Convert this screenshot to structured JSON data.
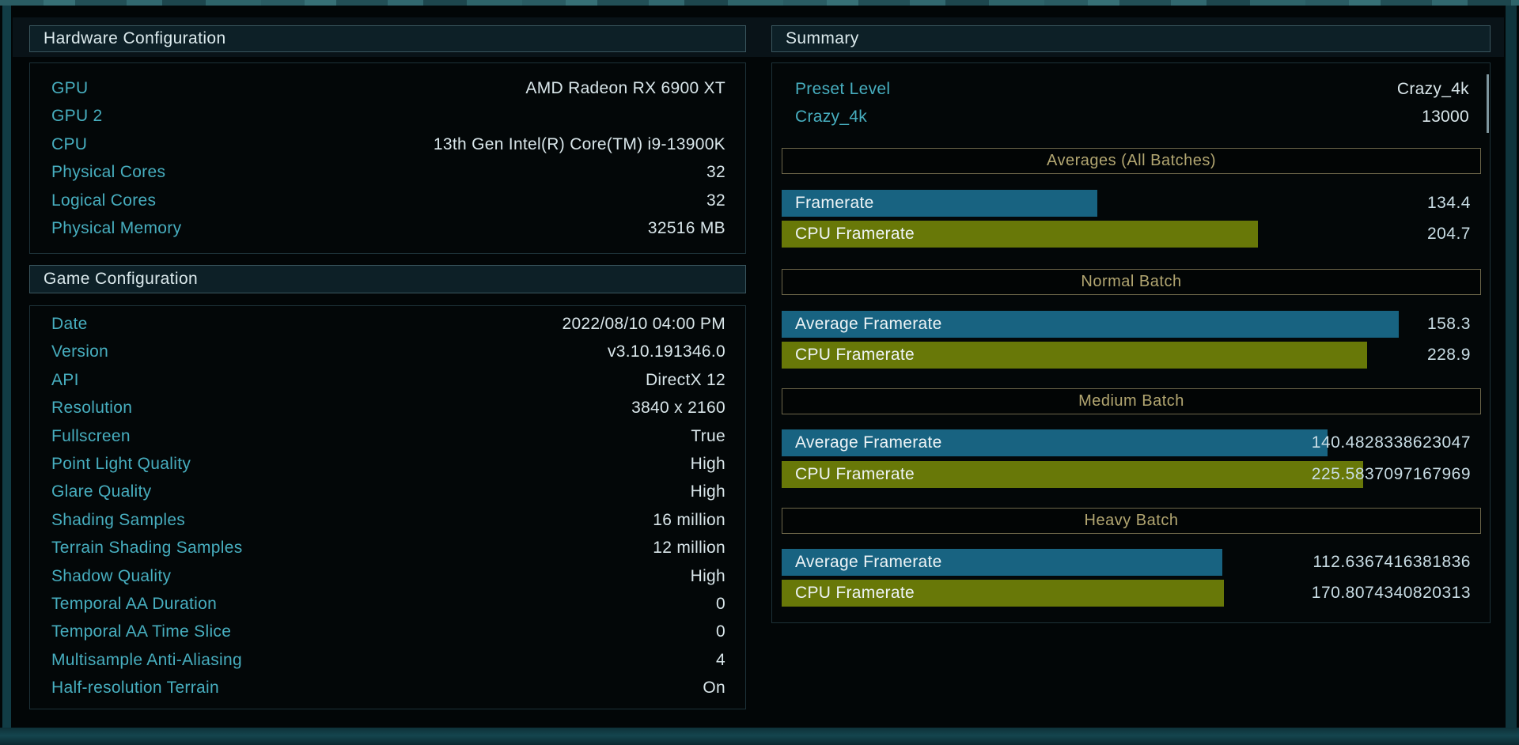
{
  "panels": {
    "hardware": {
      "title": "Hardware Configuration",
      "rows": [
        {
          "label": "GPU",
          "value": "AMD Radeon RX 6900 XT"
        },
        {
          "label": "GPU 2",
          "value": ""
        },
        {
          "label": "CPU",
          "value": "13th Gen Intel(R) Core(TM) i9-13900K"
        },
        {
          "label": "Physical Cores",
          "value": "32"
        },
        {
          "label": "Logical Cores",
          "value": "32"
        },
        {
          "label": "Physical Memory",
          "value": "32516 MB"
        }
      ]
    },
    "game": {
      "title": "Game Configuration",
      "rows": [
        {
          "label": "Date",
          "value": "2022/08/10 04:00 PM"
        },
        {
          "label": "Version",
          "value": "v3.10.191346.0"
        },
        {
          "label": "API",
          "value": "DirectX 12"
        },
        {
          "label": "Resolution",
          "value": "3840 x 2160"
        },
        {
          "label": "Fullscreen",
          "value": "True"
        },
        {
          "label": "Point Light Quality",
          "value": "High"
        },
        {
          "label": "Glare Quality",
          "value": "High"
        },
        {
          "label": "Shading Samples",
          "value": "16 million"
        },
        {
          "label": "Terrain Shading Samples",
          "value": "12 million"
        },
        {
          "label": "Shadow Quality",
          "value": "High"
        },
        {
          "label": "Temporal AA Duration",
          "value": "0"
        },
        {
          "label": "Temporal AA Time Slice",
          "value": "0"
        },
        {
          "label": "Multisample Anti-Aliasing",
          "value": "4"
        },
        {
          "label": "Half-resolution Terrain",
          "value": "On"
        }
      ]
    },
    "summary": {
      "title": "Summary",
      "info_rows": [
        {
          "label": "Preset Level",
          "value": "Crazy_4k"
        },
        {
          "label": "Crazy_4k",
          "value": "13000"
        }
      ],
      "sections": [
        {
          "header": "Averages (All Batches)",
          "bars": [
            {
              "label": "Framerate",
              "value": "134.4",
              "type": "gpu",
              "width_pct": 45.0
            },
            {
              "label": "CPU Framerate",
              "value": "204.7",
              "type": "cpu",
              "width_pct": 67.9
            }
          ]
        },
        {
          "header": "Normal Batch",
          "bars": [
            {
              "label": "Average Framerate",
              "value": "158.3",
              "type": "gpu",
              "width_pct": 88.0
            },
            {
              "label": "CPU Framerate",
              "value": "228.9",
              "type": "cpu",
              "width_pct": 83.5
            }
          ]
        },
        {
          "header": "Medium Batch",
          "bars": [
            {
              "label": "Average Framerate",
              "value": "140.4828338623047",
              "type": "gpu",
              "width_pct": 77.9
            },
            {
              "label": "CPU Framerate",
              "value": "225.5837097167969",
              "type": "cpu",
              "width_pct": 83.0
            }
          ]
        },
        {
          "header": "Heavy Batch",
          "bars": [
            {
              "label": "Average Framerate",
              "value": "112.6367416381836",
              "type": "gpu",
              "width_pct": 62.9
            },
            {
              "label": "CPU Framerate",
              "value": "170.8074340820313",
              "type": "cpu",
              "width_pct": 63.1
            }
          ]
        }
      ]
    }
  },
  "colors": {
    "label_teal": "#47aebf",
    "value_light": "#d9e6ea",
    "bar_gpu": "#186381",
    "bar_cpu": "#687808",
    "section_gold": "#b2a671",
    "header_text": "#dbe9ec",
    "frame_teal": "#113c45"
  }
}
